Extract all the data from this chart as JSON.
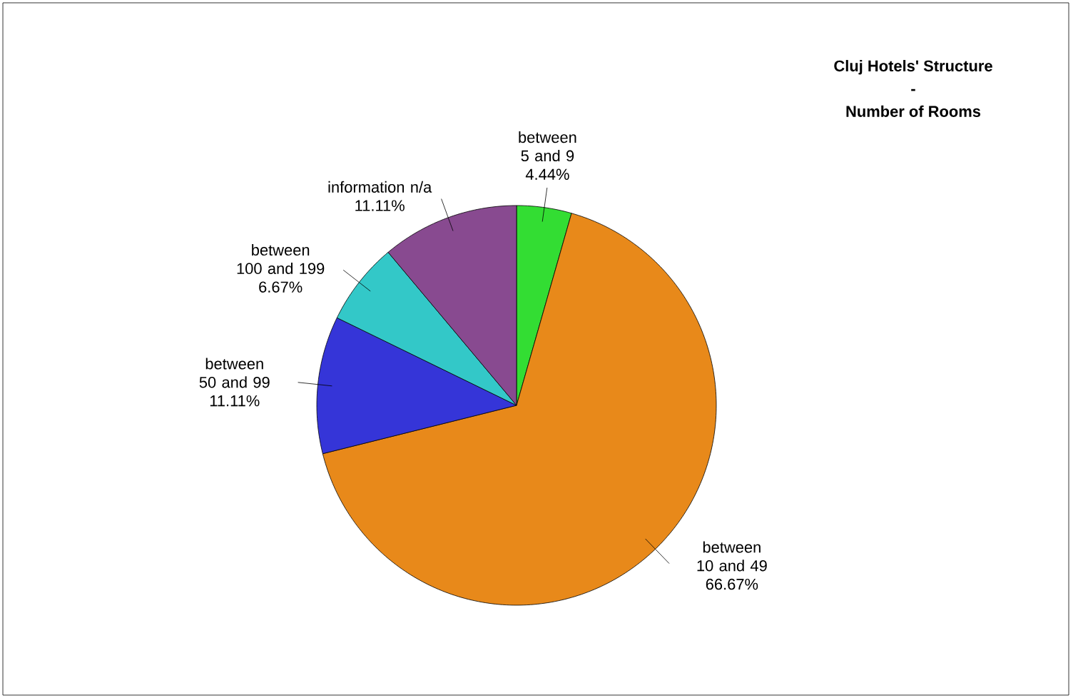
{
  "chart_data": {
    "type": "pie",
    "title": "Cluj Hotels' Structure",
    "subtitle": "Number of Rooms",
    "annotations": [
      "-"
    ],
    "categories": [
      "between 5 and 9",
      "between 10 and 49",
      "between 50 and 99",
      "between 100 and 199",
      "information n/a"
    ],
    "values": [
      4.44,
      66.67,
      11.11,
      6.67,
      11.11
    ],
    "colors": [
      "#33dd33",
      "#e8891a",
      "#3535d8",
      "#33c8c8",
      "#884a90"
    ],
    "value_labels": [
      "4.44%",
      "66.67%",
      "11.11%",
      "6.67%",
      "11.11%"
    ]
  }
}
